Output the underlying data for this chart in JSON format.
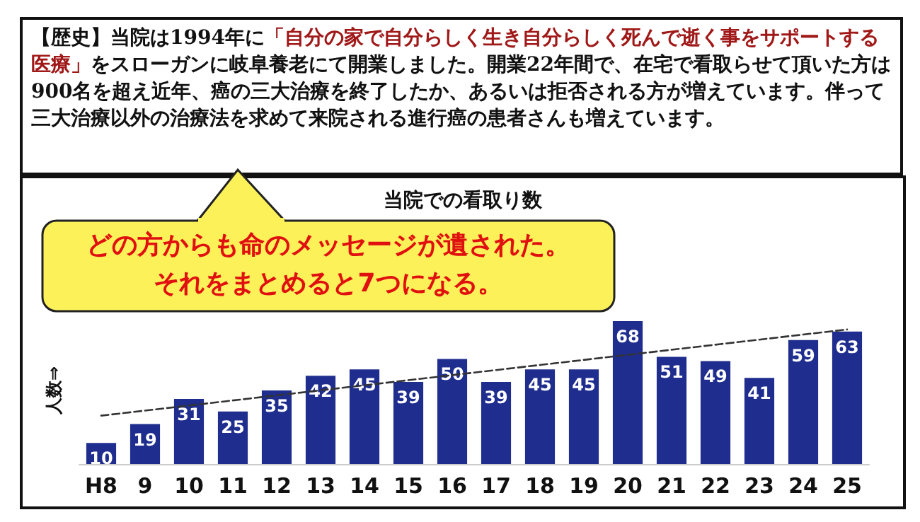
{
  "chart_data": {
    "type": "bar",
    "title": "当院での看取り数",
    "ylabel": "人数⇒",
    "categories": [
      "H8",
      "9",
      "10",
      "11",
      "12",
      "13",
      "14",
      "15",
      "16",
      "17",
      "18",
      "19",
      "20",
      "21",
      "22",
      "23",
      "24",
      "25"
    ],
    "series": [
      {
        "color": "#1f2e8e",
        "values": [
          10,
          19,
          31,
          25,
          35,
          42,
          45,
          39,
          50,
          39,
          45,
          45,
          68,
          51,
          49,
          41,
          59,
          63
        ],
        "value_labels": [
          "10",
          "19",
          "31",
          "25",
          "35",
          "42",
          "45",
          "39",
          "50",
          "39",
          "45",
          "45",
          "68",
          "51",
          "49",
          "41",
          "59",
          "63"
        ]
      },
      {
        "type": "line",
        "color": "#333333",
        "line_style": "dashed",
        "marker": "none",
        "x": [
          "H8",
          "25"
        ],
        "values": [
          23,
          64
        ]
      }
    ],
    "grid": false,
    "tick_labels": "x",
    "annotations": [
      "【歴史】当院は1994年に",
      "「自分の家で自分らしく生き自分らしく死んで逝く事をサポートする医療」",
      "をスローガンに岐阜養老にて開業しました。開業22年間で、在宅で看取らせて頂いた方は900名を超え近年、癌の三大治療を終了したか、あるいは拒否される方が増えています。伴って三大治療以外の治療法を求めて来院される進行癌の患者さんも増えています。",
      "どの方からも命のメッセージが遺された。",
      "それをまとめると7つになる。"
    ]
  }
}
